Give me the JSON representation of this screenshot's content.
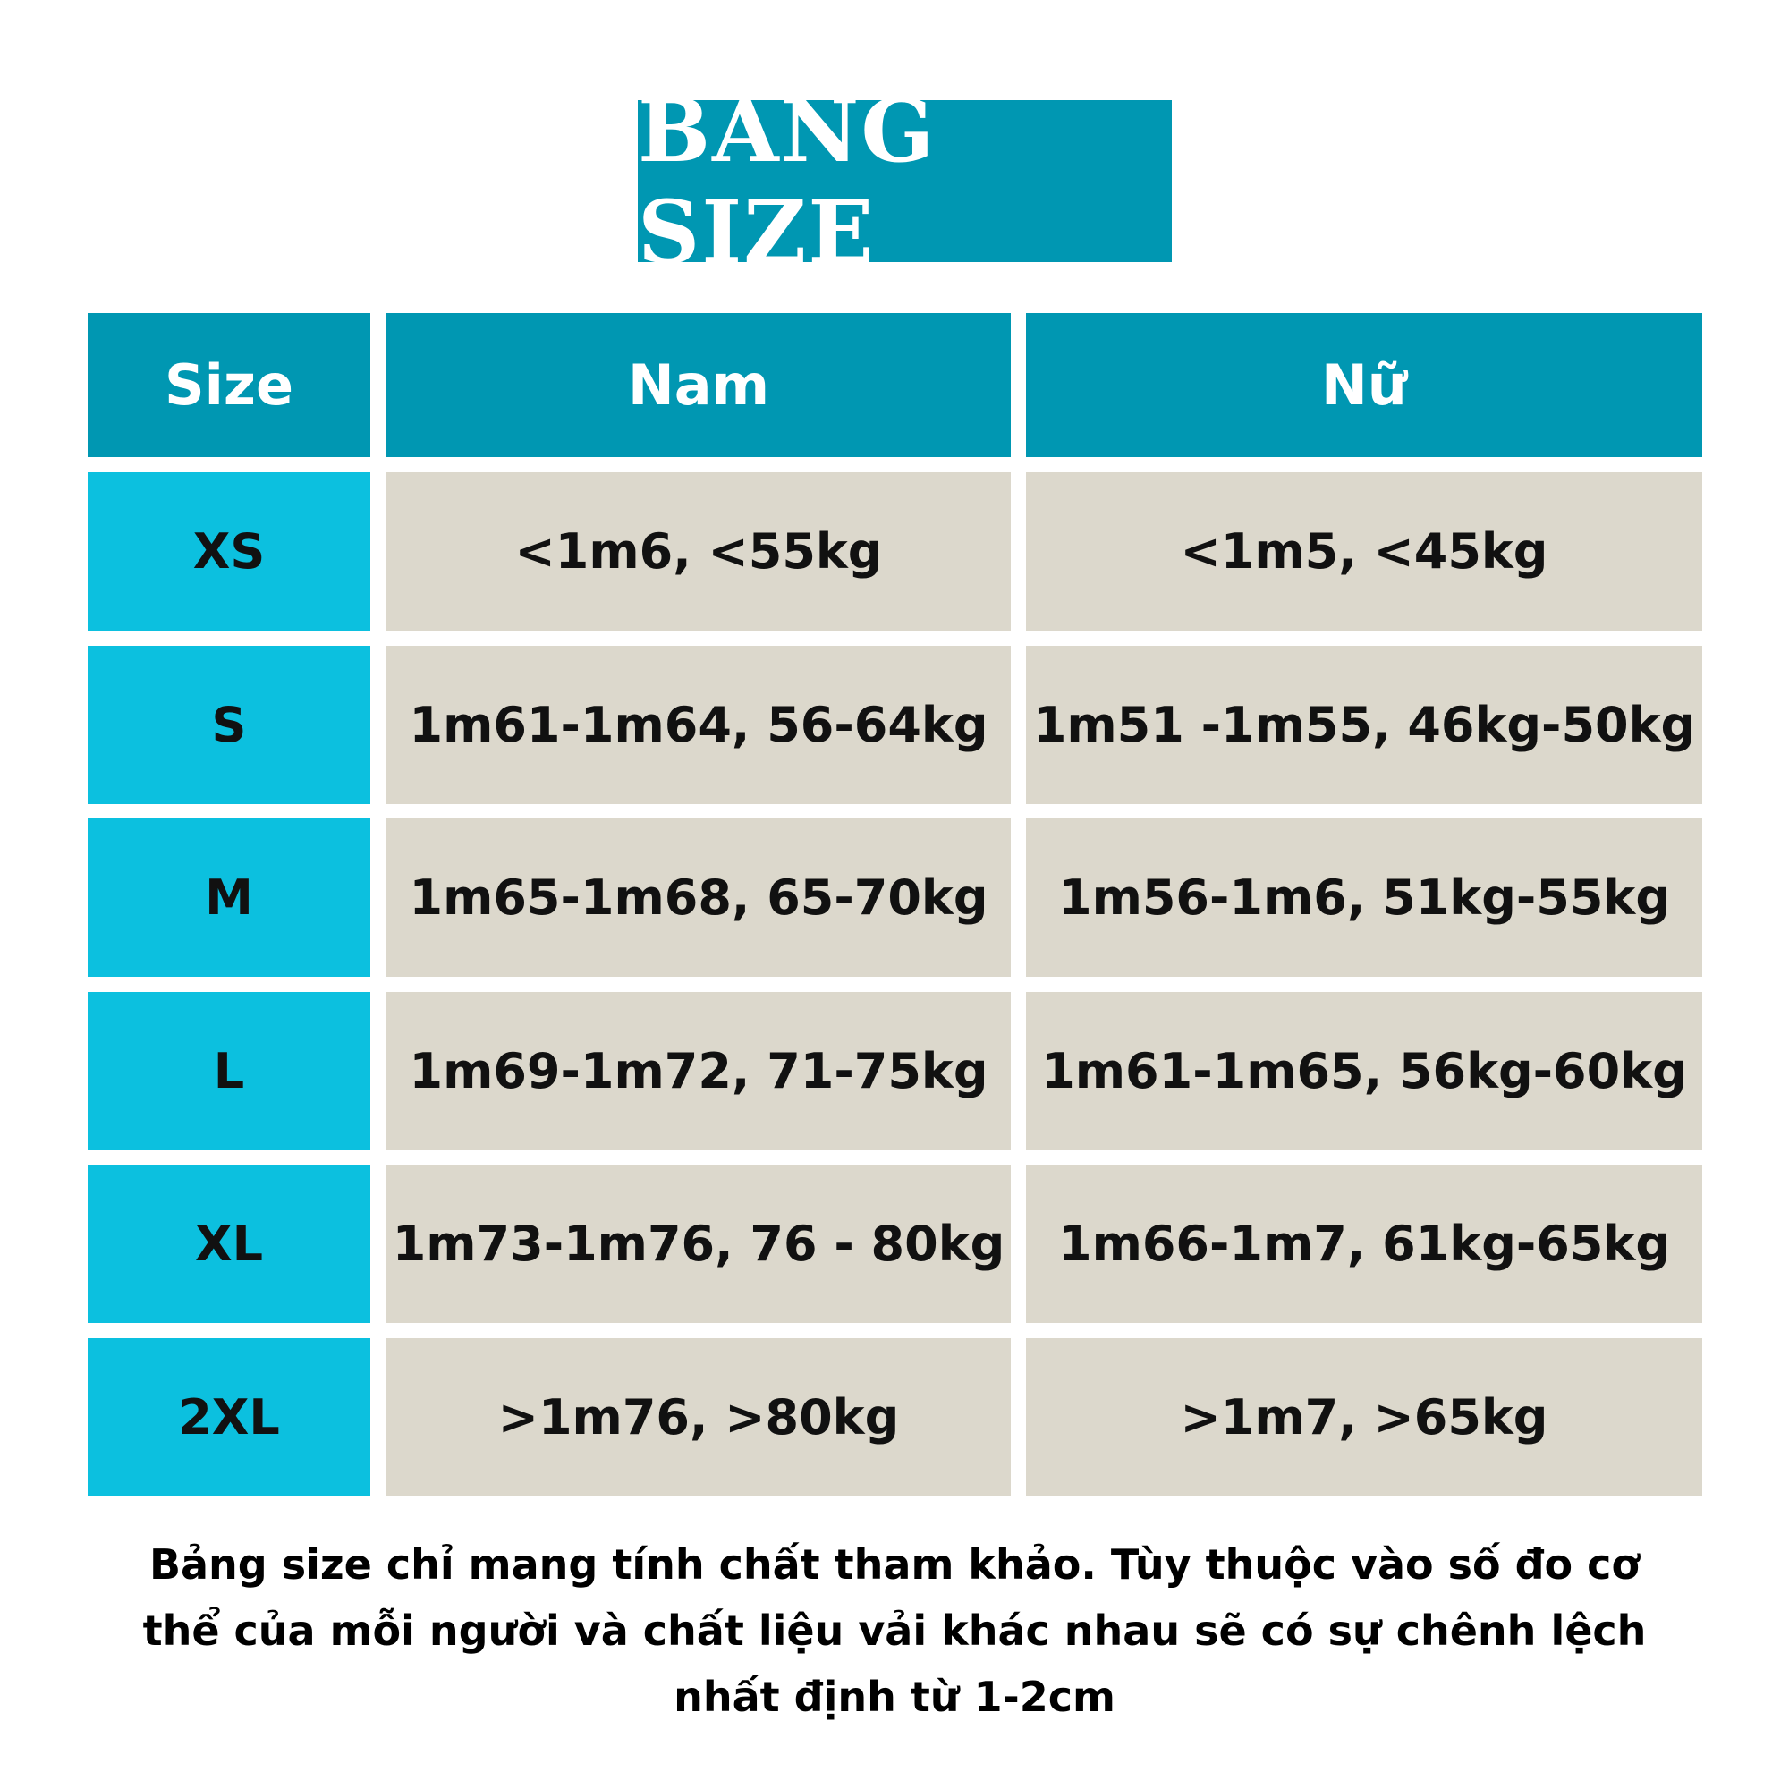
{
  "title": "BẢNG SIZE",
  "colors": {
    "header": "#0097b2",
    "size_cell": "#0cc0df",
    "value_cell": "#dcd8cc"
  },
  "table": {
    "headers": [
      "Size",
      "Nam",
      "Nữ"
    ],
    "rows": [
      {
        "size": "XS",
        "nam": "<1m6, <55kg",
        "nu": "<1m5, <45kg"
      },
      {
        "size": "S",
        "nam": "1m61-1m64, 56-64kg",
        "nu": "1m51 -1m55, 46kg-50kg"
      },
      {
        "size": "M",
        "nam": "1m65-1m68, 65-70kg",
        "nu": "1m56-1m6, 51kg-55kg"
      },
      {
        "size": "L",
        "nam": "1m69-1m72, 71-75kg",
        "nu": "1m61-1m65, 56kg-60kg"
      },
      {
        "size": "XL",
        "nam": "1m73-1m76, 76 - 80kg",
        "nu": "1m66-1m7, 61kg-65kg"
      },
      {
        "size": "2XL",
        "nam": ">1m76, >80kg",
        "nu": ">1m7, >65kg"
      }
    ]
  },
  "footer": {
    "lines": [
      "Bảng size chỉ mang tính chất tham khảo. Tùy thuộc vào số đo cơ",
      "thể của mỗi người và chất liệu vải khác nhau sẽ có sự chênh lệch",
      "nhất định từ 1-2cm"
    ]
  }
}
